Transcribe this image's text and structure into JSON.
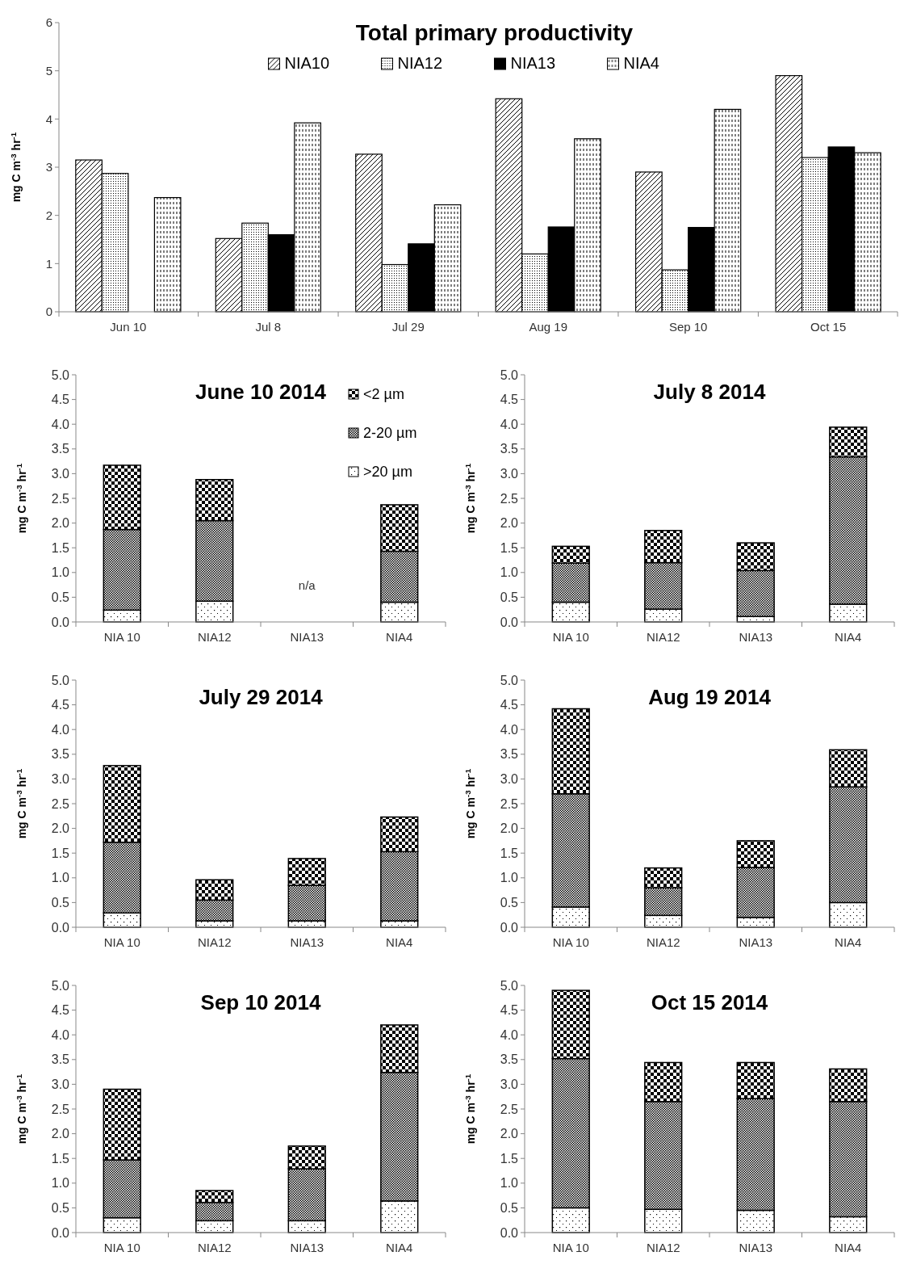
{
  "chart_data": [
    {
      "type": "bar",
      "title": "Total primary productivity",
      "ylabel": "mg C m$^{-3}$ hr$^{-1}$",
      "categories": [
        "Jun 10",
        "Jul 8",
        "Jul 29",
        "Aug 19",
        "Sep 10",
        "Oct 15"
      ],
      "ylim": [
        0,
        6
      ],
      "yticks": [
        0,
        1,
        2,
        3,
        4,
        5,
        6
      ],
      "legend": "top",
      "series": [
        {
          "name": "NIA10",
          "color": "#000000",
          "values": [
            3.15,
            1.52,
            3.27,
            4.42,
            2.9,
            4.9
          ]
        },
        {
          "name": "NIA12",
          "color": "#000000",
          "values": [
            2.87,
            1.84,
            0.98,
            1.2,
            0.87,
            3.2
          ]
        },
        {
          "name": "NIA13",
          "color": "#000000",
          "values": [
            null,
            1.6,
            1.41,
            1.76,
            1.75,
            3.42
          ]
        },
        {
          "name": "NIA4",
          "color": "#000000",
          "values": [
            2.37,
            3.92,
            2.22,
            3.59,
            4.2,
            3.3
          ]
        }
      ]
    },
    {
      "type": "bar",
      "stacked": true,
      "title": "June 10 2014",
      "ylabel": "mg C m$^{-3}$ hr$^{-1}$",
      "categories": [
        "NIA 10",
        "NIA12",
        "NIA13",
        "NIA4"
      ],
      "ylim": [
        0,
        5
      ],
      "yticks": [
        {
          "value": 0,
          "label": "0.0"
        },
        {
          "value": 0.5,
          "label": "0.5"
        },
        {
          "value": 1,
          "label": "1.0"
        },
        {
          "value": 1.5,
          "label": "1.5"
        },
        {
          "value": 2,
          "label": "2.0"
        },
        {
          "value": 2.5,
          "label": "2.5"
        },
        {
          "value": 3,
          "label": "3.0"
        },
        {
          "value": 3.5,
          "label": "3.5"
        },
        {
          "value": 4,
          "label": "4.0"
        },
        {
          "value": 4.5,
          "label": "4.5"
        },
        {
          "value": 5,
          "label": "5.0"
        }
      ],
      "legend": "top right",
      "annotations": [
        "n/a"
      ],
      "series": [
        {
          "name": ">20 µm",
          "color": "#000000",
          "values": [
            0.24,
            0.42,
            null,
            0.4
          ]
        },
        {
          "name": "2-20 µm",
          "color": "#000000",
          "values": [
            1.63,
            1.63,
            null,
            1.03
          ]
        },
        {
          "name": "<2 µm",
          "color": "#000000",
          "values": [
            1.3,
            0.83,
            null,
            0.94
          ]
        }
      ]
    },
    {
      "type": "bar",
      "stacked": true,
      "title": "July 8 2014",
      "ylabel": "mg C m$^{-3}$ hr$^{-1}$",
      "categories": [
        "NIA 10",
        "NIA12",
        "NIA13",
        "NIA4"
      ],
      "ylim": [
        0,
        5
      ],
      "yticks": [
        {
          "value": 0,
          "label": "0.0"
        },
        {
          "value": 0.5,
          "label": "0.5"
        },
        {
          "value": 1,
          "label": "1.0"
        },
        {
          "value": 1.5,
          "label": "1.5"
        },
        {
          "value": 2,
          "label": "2.0"
        },
        {
          "value": 2.5,
          "label": "2.5"
        },
        {
          "value": 3,
          "label": "3.0"
        },
        {
          "value": 3.5,
          "label": "3.5"
        },
        {
          "value": 4,
          "label": "4.0"
        },
        {
          "value": 4.5,
          "label": "4.5"
        },
        {
          "value": 5,
          "label": "5.0"
        }
      ],
      "series": [
        {
          "color": "#000000",
          "values": [
            0.4,
            0.26,
            0.11,
            0.36
          ]
        },
        {
          "color": "#000000",
          "values": [
            0.79,
            0.94,
            0.93,
            2.98
          ]
        },
        {
          "color": "#000000",
          "values": [
            0.34,
            0.65,
            0.56,
            0.6
          ]
        }
      ]
    },
    {
      "type": "bar",
      "stacked": true,
      "title": "July 29 2014",
      "ylabel": "mg C m$^{-3}$ hr$^{-1}$",
      "categories": [
        "NIA 10",
        "NIA12",
        "NIA13",
        "NIA4"
      ],
      "ylim": [
        0,
        5
      ],
      "yticks": [
        {
          "value": 0,
          "label": "0.0"
        },
        {
          "value": 0.5,
          "label": "0.5"
        },
        {
          "value": 1,
          "label": "1.0"
        },
        {
          "value": 1.5,
          "label": "1.5"
        },
        {
          "value": 2,
          "label": "2.0"
        },
        {
          "value": 2.5,
          "label": "2.5"
        },
        {
          "value": 3,
          "label": "3.0"
        },
        {
          "value": 3.5,
          "label": "3.5"
        },
        {
          "value": 4,
          "label": "4.0"
        },
        {
          "value": 4.5,
          "label": "4.5"
        },
        {
          "value": 5,
          "label": "5.0"
        }
      ],
      "series": [
        {
          "color": "#000000",
          "values": [
            0.29,
            0.13,
            0.13,
            0.13
          ]
        },
        {
          "color": "#000000",
          "values": [
            1.43,
            0.42,
            0.72,
            1.4
          ]
        },
        {
          "color": "#000000",
          "values": [
            1.55,
            0.41,
            0.54,
            0.7
          ]
        }
      ]
    },
    {
      "type": "bar",
      "stacked": true,
      "title": "Aug 19 2014",
      "ylabel": "mg C m$^{-3}$ hr$^{-1}$",
      "categories": [
        "NIA 10",
        "NIA12",
        "NIA13",
        "NIA4"
      ],
      "ylim": [
        0,
        5
      ],
      "yticks": [
        {
          "value": 0,
          "label": "0.0"
        },
        {
          "value": 0.5,
          "label": "0.5"
        },
        {
          "value": 1,
          "label": "1.0"
        },
        {
          "value": 1.5,
          "label": "1.5"
        },
        {
          "value": 2,
          "label": "2.0"
        },
        {
          "value": 2.5,
          "label": "2.5"
        },
        {
          "value": 3,
          "label": "3.0"
        },
        {
          "value": 3.5,
          "label": "3.5"
        },
        {
          "value": 4,
          "label": "4.0"
        },
        {
          "value": 4.5,
          "label": "4.5"
        },
        {
          "value": 5,
          "label": "5.0"
        }
      ],
      "series": [
        {
          "color": "#000000",
          "values": [
            0.41,
            0.24,
            0.2,
            0.5
          ]
        },
        {
          "color": "#000000",
          "values": [
            2.29,
            0.56,
            1.01,
            2.34
          ]
        },
        {
          "color": "#000000",
          "values": [
            1.72,
            0.4,
            0.54,
            0.75
          ]
        }
      ]
    },
    {
      "type": "bar",
      "stacked": true,
      "title": "Sep 10 2014",
      "ylabel": "mg C m$^{-3}$ hr$^{-1}$",
      "categories": [
        "NIA 10",
        "NIA12",
        "NIA13",
        "NIA4"
      ],
      "ylim": [
        0,
        5
      ],
      "yticks": [
        {
          "value": 0,
          "label": "0.0"
        },
        {
          "value": 0.5,
          "label": "0.5"
        },
        {
          "value": 1,
          "label": "1.0"
        },
        {
          "value": 1.5,
          "label": "1.5"
        },
        {
          "value": 2,
          "label": "2.0"
        },
        {
          "value": 2.5,
          "label": "2.5"
        },
        {
          "value": 3,
          "label": "3.0"
        },
        {
          "value": 3.5,
          "label": "3.5"
        },
        {
          "value": 4,
          "label": "4.0"
        },
        {
          "value": 4.5,
          "label": "4.5"
        },
        {
          "value": 5,
          "label": "5.0"
        }
      ],
      "series": [
        {
          "color": "#000000",
          "values": [
            0.3,
            0.24,
            0.24,
            0.64
          ]
        },
        {
          "color": "#000000",
          "values": [
            1.17,
            0.37,
            1.05,
            2.6
          ]
        },
        {
          "color": "#000000",
          "values": [
            1.43,
            0.24,
            0.46,
            0.96
          ]
        }
      ]
    },
    {
      "type": "bar",
      "stacked": true,
      "title": "Oct 15 2014",
      "ylabel": "mg C m$^{-3}$ hr$^{-1}$",
      "categories": [
        "NIA 10",
        "NIA12",
        "NIA13",
        "NIA4"
      ],
      "ylim": [
        0,
        5
      ],
      "yticks": [
        {
          "value": 0,
          "label": "0.0"
        },
        {
          "value": 0.5,
          "label": "0.5"
        },
        {
          "value": 1,
          "label": "1.0"
        },
        {
          "value": 1.5,
          "label": "1.5"
        },
        {
          "value": 2,
          "label": "2.0"
        },
        {
          "value": 2.5,
          "label": "2.5"
        },
        {
          "value": 3,
          "label": "3.0"
        },
        {
          "value": 3.5,
          "label": "3.5"
        },
        {
          "value": 4,
          "label": "4.0"
        },
        {
          "value": 4.5,
          "label": "4.5"
        },
        {
          "value": 5,
          "label": "5.0"
        }
      ],
      "series": [
        {
          "color": "#000000",
          "values": [
            0.5,
            0.47,
            0.45,
            0.32
          ]
        },
        {
          "color": "#000000",
          "values": [
            3.02,
            2.18,
            2.26,
            2.33
          ]
        },
        {
          "color": "#000000",
          "values": [
            1.38,
            0.79,
            0.73,
            0.66
          ]
        }
      ]
    }
  ]
}
